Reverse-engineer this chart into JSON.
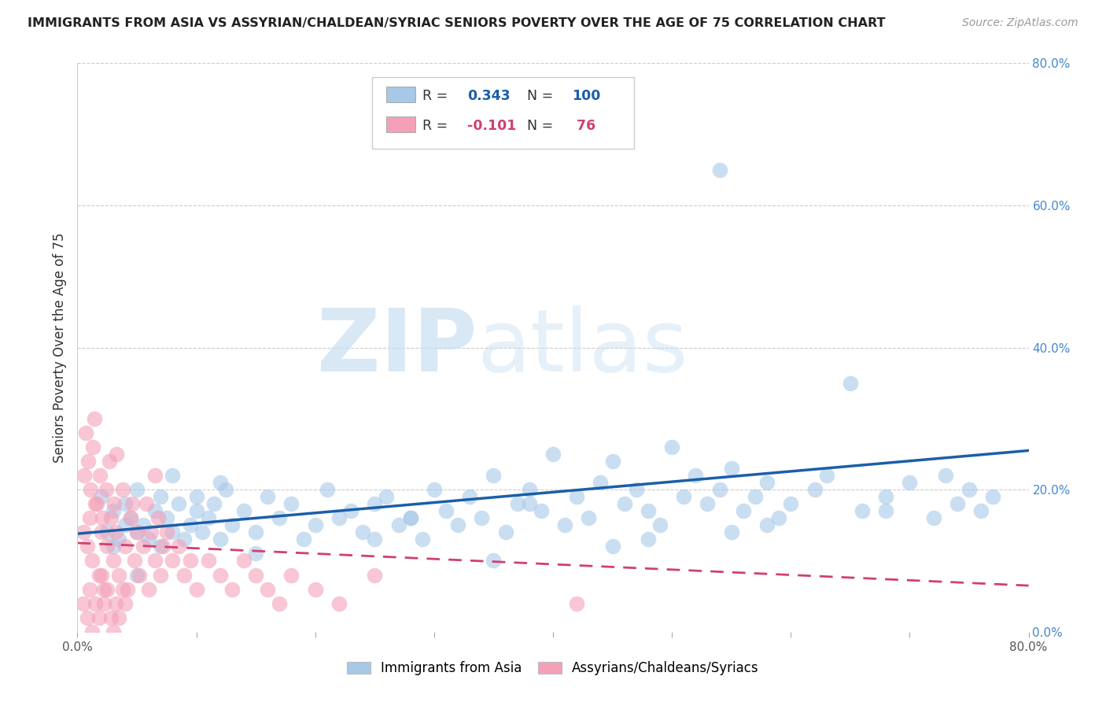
{
  "title": "IMMIGRANTS FROM ASIA VS ASSYRIAN/CHALDEAN/SYRIAC SENIORS POVERTY OVER THE AGE OF 75 CORRELATION CHART",
  "source": "Source: ZipAtlas.com",
  "ylabel": "Seniors Poverty Over the Age of 75",
  "legend_labels": [
    "Immigrants from Asia",
    "Assyrians/Chaldeans/Syriacs"
  ],
  "blue_color": "#a8c8e8",
  "pink_color": "#f4a0b8",
  "blue_line_color": "#1a5fa8",
  "pink_line_color": "#d04070",
  "r_blue": 0.343,
  "n_blue": 100,
  "r_pink": -0.101,
  "n_pink": 76,
  "xlim": [
    0.0,
    0.8
  ],
  "ylim": [
    0.0,
    0.8
  ],
  "yticks_right": [
    0.0,
    0.2,
    0.4,
    0.6,
    0.8
  ],
  "watermark_zip": "ZIP",
  "watermark_atlas": "atlas",
  "background_color": "#ffffff",
  "grid_color": "#cccccc",
  "blue_scatter": {
    "x": [
      0.02,
      0.025,
      0.03,
      0.035,
      0.04,
      0.04,
      0.045,
      0.05,
      0.05,
      0.055,
      0.06,
      0.065,
      0.07,
      0.07,
      0.075,
      0.08,
      0.085,
      0.09,
      0.095,
      0.1,
      0.1,
      0.105,
      0.11,
      0.115,
      0.12,
      0.125,
      0.13,
      0.14,
      0.15,
      0.16,
      0.17,
      0.18,
      0.19,
      0.2,
      0.21,
      0.22,
      0.23,
      0.24,
      0.25,
      0.26,
      0.27,
      0.28,
      0.29,
      0.3,
      0.31,
      0.32,
      0.33,
      0.34,
      0.35,
      0.36,
      0.37,
      0.38,
      0.39,
      0.4,
      0.41,
      0.42,
      0.43,
      0.44,
      0.45,
      0.46,
      0.47,
      0.48,
      0.49,
      0.5,
      0.51,
      0.52,
      0.53,
      0.54,
      0.55,
      0.56,
      0.57,
      0.58,
      0.59,
      0.6,
      0.62,
      0.63,
      0.65,
      0.66,
      0.68,
      0.7,
      0.72,
      0.73,
      0.74,
      0.75,
      0.76,
      0.77,
      0.03,
      0.08,
      0.15,
      0.25,
      0.35,
      0.45,
      0.55,
      0.28,
      0.38,
      0.48,
      0.58,
      0.68,
      0.05,
      0.12
    ],
    "y": [
      0.19,
      0.14,
      0.17,
      0.13,
      0.15,
      0.18,
      0.16,
      0.14,
      0.2,
      0.15,
      0.13,
      0.17,
      0.12,
      0.19,
      0.16,
      0.14,
      0.18,
      0.13,
      0.15,
      0.17,
      0.19,
      0.14,
      0.16,
      0.18,
      0.13,
      0.2,
      0.15,
      0.17,
      0.14,
      0.19,
      0.16,
      0.18,
      0.13,
      0.15,
      0.2,
      0.16,
      0.17,
      0.14,
      0.18,
      0.19,
      0.15,
      0.16,
      0.13,
      0.2,
      0.17,
      0.15,
      0.19,
      0.16,
      0.22,
      0.14,
      0.18,
      0.2,
      0.17,
      0.25,
      0.15,
      0.19,
      0.16,
      0.21,
      0.24,
      0.18,
      0.2,
      0.17,
      0.15,
      0.26,
      0.19,
      0.22,
      0.18,
      0.2,
      0.23,
      0.17,
      0.19,
      0.21,
      0.16,
      0.18,
      0.2,
      0.22,
      0.35,
      0.17,
      0.19,
      0.21,
      0.16,
      0.22,
      0.18,
      0.2,
      0.17,
      0.19,
      0.12,
      0.22,
      0.11,
      0.13,
      0.1,
      0.12,
      0.14,
      0.16,
      0.18,
      0.13,
      0.15,
      0.17,
      0.08,
      0.21
    ]
  },
  "pink_scatter": {
    "x": [
      0.005,
      0.008,
      0.01,
      0.012,
      0.015,
      0.018,
      0.02,
      0.022,
      0.025,
      0.028,
      0.03,
      0.032,
      0.035,
      0.038,
      0.04,
      0.042,
      0.045,
      0.048,
      0.05,
      0.052,
      0.055,
      0.058,
      0.06,
      0.062,
      0.065,
      0.068,
      0.07,
      0.072,
      0.075,
      0.08,
      0.005,
      0.008,
      0.01,
      0.012,
      0.015,
      0.018,
      0.02,
      0.022,
      0.025,
      0.028,
      0.03,
      0.032,
      0.035,
      0.038,
      0.04,
      0.085,
      0.09,
      0.095,
      0.1,
      0.11,
      0.12,
      0.13,
      0.14,
      0.15,
      0.16,
      0.17,
      0.18,
      0.2,
      0.22,
      0.25,
      0.006,
      0.009,
      0.011,
      0.013,
      0.016,
      0.019,
      0.021,
      0.024,
      0.027,
      0.031,
      0.007,
      0.014,
      0.033,
      0.046,
      0.065,
      0.42
    ],
    "y": [
      0.14,
      0.12,
      0.16,
      0.1,
      0.18,
      0.08,
      0.14,
      0.06,
      0.12,
      0.16,
      0.1,
      0.14,
      0.08,
      0.2,
      0.12,
      0.06,
      0.16,
      0.1,
      0.14,
      0.08,
      0.12,
      0.18,
      0.06,
      0.14,
      0.1,
      0.16,
      0.08,
      0.12,
      0.14,
      0.1,
      0.04,
      0.02,
      0.06,
      0.0,
      0.04,
      0.02,
      0.08,
      0.04,
      0.06,
      0.02,
      0.0,
      0.04,
      0.02,
      0.06,
      0.04,
      0.12,
      0.08,
      0.1,
      0.06,
      0.1,
      0.08,
      0.06,
      0.1,
      0.08,
      0.06,
      0.04,
      0.08,
      0.06,
      0.04,
      0.08,
      0.22,
      0.24,
      0.2,
      0.26,
      0.18,
      0.22,
      0.16,
      0.2,
      0.24,
      0.18,
      0.28,
      0.3,
      0.25,
      0.18,
      0.22,
      0.04
    ]
  },
  "blue_outliers": {
    "x": [
      0.54
    ],
    "y": [
      0.65
    ]
  },
  "blue_line": {
    "x0": 0.0,
    "x1": 0.8,
    "y0": 0.138,
    "y1": 0.255
  },
  "pink_line": {
    "x0": 0.0,
    "x1": 0.8,
    "y0": 0.125,
    "y1": 0.065
  }
}
